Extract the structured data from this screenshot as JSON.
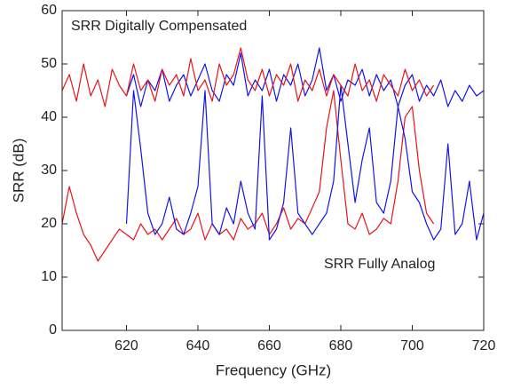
{
  "chart_data": {
    "type": "line",
    "x_label": "Frequency (GHz)",
    "y_label": "SRR (dB)",
    "annotations": [
      "SRR Digitally Compensated",
      "SRR Fully Analog"
    ],
    "xlim": [
      602,
      720
    ],
    "xticks": [
      620,
      640,
      660,
      680,
      700,
      720
    ],
    "ylim": [
      0,
      60
    ],
    "yticks": [
      0,
      10,
      20,
      30,
      40,
      50,
      60
    ],
    "series": [
      {
        "color": "#e8141b",
        "x": [
          602,
          604,
          606,
          608,
          610,
          612,
          614,
          616,
          618,
          620,
          622,
          624,
          626,
          628,
          630,
          632,
          634,
          636,
          638,
          640,
          642,
          644,
          646,
          648,
          650,
          652,
          654,
          656,
          658,
          660,
          662,
          664,
          666,
          668,
          670,
          672,
          674,
          676,
          678,
          680,
          682,
          684,
          686,
          688,
          690,
          692,
          694,
          696,
          698,
          700,
          702,
          704,
          706
        ],
        "values": [
          20,
          27,
          22,
          18,
          16,
          13,
          15,
          17,
          19,
          18,
          17,
          20,
          18,
          19,
          17,
          19,
          21,
          18,
          19,
          22,
          17,
          20,
          18,
          19,
          17,
          21,
          19,
          20,
          22,
          18,
          20,
          23,
          19,
          21,
          20,
          23,
          26,
          38,
          45,
          32,
          20,
          19,
          22,
          18,
          19,
          21,
          20,
          28,
          40,
          42,
          30,
          22,
          20
        ]
      },
      {
        "color": "#1414e6",
        "x": [
          620,
          622,
          624,
          626,
          628,
          630,
          632,
          634,
          636,
          638,
          640,
          642,
          644,
          646,
          648,
          650,
          652,
          654,
          656,
          658,
          660,
          662,
          664,
          666,
          668,
          670,
          672,
          674,
          676,
          678,
          680,
          682,
          684,
          686,
          688,
          690,
          692,
          694,
          696,
          698,
          700,
          702,
          704,
          706,
          708,
          710,
          712,
          714,
          716,
          718,
          720
        ],
        "values": [
          44,
          48,
          42,
          47,
          45,
          49,
          43,
          46,
          48,
          44,
          47,
          50,
          45,
          43,
          48,
          46,
          52,
          44,
          47,
          45,
          49,
          43,
          48,
          46,
          50,
          44,
          47,
          53,
          45,
          48,
          43,
          47,
          46,
          49,
          44,
          48,
          45,
          47,
          42,
          46,
          48,
          43,
          46,
          44,
          47,
          42,
          45,
          43,
          46,
          44,
          45
        ]
      },
      {
        "color": "#1414e6",
        "x": [
          620,
          622,
          624,
          626,
          628,
          630,
          632,
          634,
          636,
          638,
          640,
          642,
          644,
          646,
          648,
          650,
          652,
          654,
          656,
          658,
          660,
          662,
          664,
          666,
          668,
          670,
          672,
          674,
          676,
          678,
          680,
          682,
          684,
          686,
          688,
          690,
          692,
          694,
          696,
          698,
          700,
          702,
          704,
          706,
          708,
          710,
          712,
          714,
          716,
          718,
          720
        ],
        "values": [
          20,
          45,
          34,
          22,
          18,
          20,
          25,
          19,
          18,
          22,
          27,
          45,
          20,
          18,
          23,
          20,
          28,
          22,
          19,
          44,
          17,
          19,
          24,
          38,
          22,
          20,
          18,
          20,
          22,
          28,
          46,
          35,
          24,
          32,
          38,
          24,
          22,
          28,
          42,
          36,
          26,
          24,
          20,
          17,
          19,
          35,
          18,
          20,
          28,
          17,
          22
        ]
      },
      {
        "color": "#e8141b",
        "x": [
          602,
          604,
          606,
          608,
          610,
          612,
          614,
          616,
          618,
          620,
          622,
          624,
          626,
          628,
          630,
          632,
          634,
          636,
          638,
          640,
          642,
          644,
          646,
          648,
          650,
          652,
          654,
          656,
          658,
          660,
          662,
          664,
          666,
          668,
          670,
          672,
          674,
          676,
          678,
          680,
          682,
          684,
          686,
          688,
          690,
          692,
          694,
          696,
          698,
          700,
          702,
          704,
          706
        ],
        "values": [
          45,
          48,
          43,
          50,
          44,
          47,
          42,
          49,
          46,
          44,
          50,
          45,
          47,
          43,
          49,
          46,
          48,
          44,
          51,
          45,
          47,
          43,
          50,
          46,
          48,
          53,
          47,
          45,
          49,
          44,
          48,
          46,
          50,
          43,
          47,
          45,
          49,
          44,
          48,
          46,
          44,
          50,
          45,
          47,
          43,
          48,
          46,
          44,
          49,
          45,
          47,
          44,
          46
        ]
      }
    ]
  }
}
